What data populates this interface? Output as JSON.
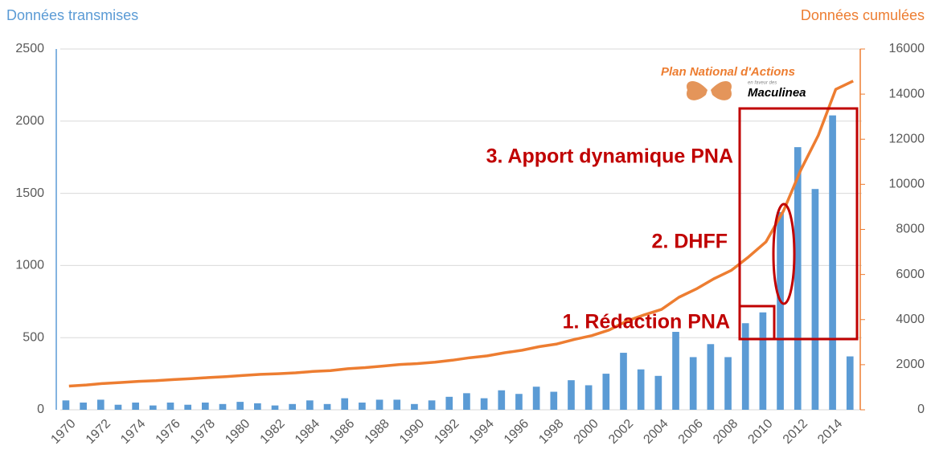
{
  "chart_data": {
    "type": "bar",
    "y_label": "Données transmises",
    "y2_label": "Données cumulées",
    "categories": [
      "1970",
      null,
      "1972",
      null,
      "1974",
      null,
      "1976",
      null,
      "1978",
      null,
      "1980",
      null,
      "1982",
      null,
      "1984",
      null,
      "1986",
      null,
      "1988",
      null,
      "1990",
      null,
      "1992",
      null,
      "1994",
      null,
      "1996",
      null,
      "1998",
      null,
      "2000",
      null,
      "2002",
      null,
      "2004",
      null,
      "2006",
      null,
      "2008",
      null,
      "2010",
      null,
      "2012",
      null,
      "2014",
      null
    ],
    "series": [
      {
        "name": "Données transmises",
        "type": "bar",
        "color": "#5b9bd5",
        "values": [
          65,
          50,
          70,
          35,
          50,
          30,
          50,
          35,
          50,
          40,
          55,
          45,
          30,
          40,
          65,
          40,
          80,
          50,
          70,
          70,
          40,
          65,
          90,
          115,
          80,
          135,
          110,
          160,
          125,
          205,
          170,
          250,
          395,
          280,
          235,
          540,
          365,
          455,
          365,
          600,
          675,
          1370,
          1820,
          1530,
          2040,
          370
        ]
      },
      {
        "name": "Données cumulées",
        "type": "line",
        "axis": "y2",
        "color": "#ed7d31",
        "values": [
          1050,
          1100,
          1170,
          1210,
          1260,
          1290,
          1340,
          1380,
          1430,
          1470,
          1520,
          1570,
          1600,
          1640,
          1700,
          1740,
          1820,
          1870,
          1940,
          2010,
          2050,
          2110,
          2200,
          2310,
          2390,
          2530,
          2640,
          2800,
          2920,
          3120,
          3290,
          3540,
          3930,
          4210,
          4450,
          4990,
          5360,
          5810,
          6180,
          6780,
          7450,
          8820,
          10640,
          12170,
          14210,
          14580
        ]
      }
    ],
    "ylim": [
      0,
      2500
    ],
    "yticks": [
      0,
      500,
      1000,
      1500,
      2000,
      2500
    ],
    "y2lim": [
      0,
      16000
    ],
    "y2ticks": [
      0,
      2000,
      4000,
      6000,
      8000,
      10000,
      12000,
      14000,
      16000
    ],
    "grid": true,
    "annotations": [
      "3. Apport dynamique PNA",
      "2. DHFF",
      "1. Rédaction PNA"
    ],
    "logo": {
      "title": "Plan National d'Actions",
      "subtitle": "en faveur des",
      "name": "Maculinea"
    }
  }
}
